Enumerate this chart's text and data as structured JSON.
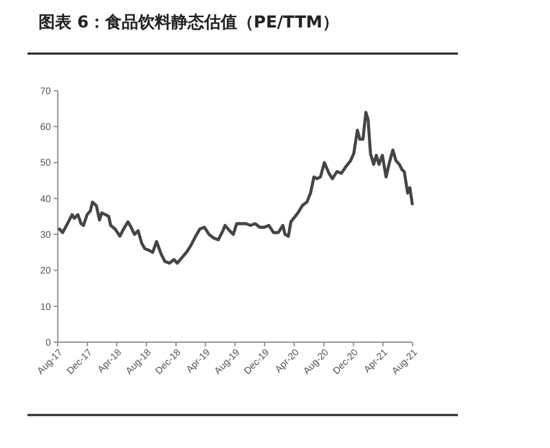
{
  "chart_data": {
    "type": "line",
    "title": "图表 6：食品饮料静态估值（PE/TTM）",
    "x": [
      "2017-08-08",
      "2017-08-21",
      "2017-09-10",
      "2017-09-29",
      "2017-10-08",
      "2017-10-23",
      "2017-11-05",
      "2017-11-15",
      "2017-11-30",
      "2017-12-13",
      "2017-12-22",
      "2018-01-07",
      "2018-01-20",
      "2018-01-29",
      "2018-02-14",
      "2018-02-27",
      "2018-03-07",
      "2018-03-25",
      "2018-04-14",
      "2018-04-29",
      "2018-05-17",
      "2018-05-30",
      "2018-06-13",
      "2018-06-28",
      "2018-07-13",
      "2018-07-26",
      "2018-08-14",
      "2018-08-27",
      "2018-09-12",
      "2018-10-01",
      "2018-10-16",
      "2018-11-04",
      "2018-11-23",
      "2018-12-06",
      "2018-12-25",
      "2019-01-13",
      "2019-02-01",
      "2019-02-20",
      "2019-03-09",
      "2019-03-28",
      "2019-04-16",
      "2019-05-05",
      "2019-05-24",
      "2019-06-12",
      "2019-06-21",
      "2019-07-10",
      "2019-07-25",
      "2019-08-08",
      "2019-08-27",
      "2019-09-15",
      "2019-10-04",
      "2019-10-23",
      "2019-11-11",
      "2019-11-30",
      "2019-12-18",
      "2020-01-07",
      "2020-01-26",
      "2020-02-14",
      "2020-02-23",
      "2020-03-08",
      "2020-03-18",
      "2020-04-16",
      "2020-05-04",
      "2020-05-23",
      "2020-06-07",
      "2020-06-21",
      "2020-07-03",
      "2020-07-18",
      "2020-08-03",
      "2020-08-22",
      "2020-09-05",
      "2020-09-24",
      "2020-10-12",
      "2020-11-01",
      "2020-11-19",
      "2020-12-02",
      "2020-12-17",
      "2020-12-27",
      "2021-01-09",
      "2021-01-21",
      "2021-01-30",
      "2021-02-09",
      "2021-02-22",
      "2021-03-05",
      "2021-03-16",
      "2021-03-30",
      "2021-04-14",
      "2021-04-28",
      "2021-05-12",
      "2021-05-25",
      "2021-06-08",
      "2021-06-19",
      "2021-06-28",
      "2021-07-12",
      "2021-07-21",
      "2021-07-31"
    ],
    "series": [
      {
        "color": "#444444",
        "values": [
          31.5,
          30.5,
          33,
          35.5,
          34.5,
          35.5,
          33,
          32.5,
          35.5,
          36.5,
          39,
          38,
          34,
          36,
          35.5,
          35,
          32.5,
          31.5,
          29.5,
          31.5,
          33.5,
          32,
          30,
          31,
          27.5,
          26,
          25.5,
          25,
          28,
          24.5,
          22.5,
          22,
          23,
          22,
          23.5,
          25,
          27,
          29.5,
          31.5,
          32,
          30,
          29,
          28.5,
          31,
          32.5,
          31,
          30,
          33,
          33,
          33,
          32.5,
          33,
          32,
          32,
          32.5,
          30.5,
          30.5,
          32.5,
          30,
          29.5,
          33.5,
          36,
          38,
          39,
          41.5,
          46,
          45.5,
          46,
          50,
          47,
          45.5,
          47.5,
          47,
          49,
          50.5,
          52.5,
          59,
          56.5,
          56.5,
          64,
          62,
          52.5,
          49.5,
          52,
          49.5,
          52,
          46,
          50,
          53.5,
          50.5,
          49.5,
          48,
          47.5,
          41.5,
          43,
          38.5
        ]
      }
    ],
    "xlim": [
      "2017-08-01",
      "2021-08-01"
    ],
    "xticks": [
      {
        "value": "2017-08-01",
        "label": "Aug-17"
      },
      {
        "value": "2017-12-01",
        "label": "Dec-17"
      },
      {
        "value": "2018-04-01",
        "label": "Apr-18"
      },
      {
        "value": "2018-08-01",
        "label": "Aug-18"
      },
      {
        "value": "2018-12-01",
        "label": "Dec-18"
      },
      {
        "value": "2019-04-01",
        "label": "Apr-19"
      },
      {
        "value": "2019-08-01",
        "label": "Aug-19"
      },
      {
        "value": "2019-12-01",
        "label": "Dec-19"
      },
      {
        "value": "2020-04-01",
        "label": "Apr-20"
      },
      {
        "value": "2020-08-01",
        "label": "Aug-20"
      },
      {
        "value": "2020-12-01",
        "label": "Dec-20"
      },
      {
        "value": "2021-04-01",
        "label": "Apr-21"
      },
      {
        "value": "2021-08-01",
        "label": "Aug-21"
      }
    ],
    "ylim": [
      0,
      70
    ],
    "yticks": [
      0,
      10,
      20,
      30,
      40,
      50,
      60,
      70
    ],
    "grid": false,
    "line_style": "solid",
    "marker": "none"
  }
}
